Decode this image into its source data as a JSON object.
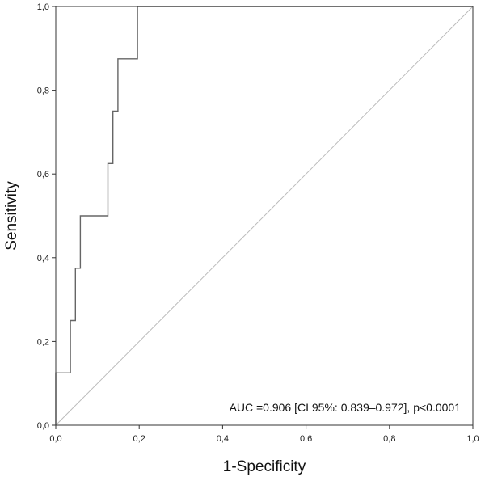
{
  "chart_data": {
    "type": "line",
    "xlabel": "1-Specificity",
    "ylabel": "Sensitivity",
    "xlim": [
      0,
      1
    ],
    "ylim": [
      0,
      1
    ],
    "x_ticks": [
      0,
      0.2,
      0.4,
      0.6,
      0.8,
      1.0
    ],
    "x_tick_labels": [
      "0,0",
      "0,2",
      "0,4",
      "0,6",
      "0,8",
      "1,0"
    ],
    "y_ticks": [
      0,
      0.2,
      0.4,
      0.6,
      0.8,
      1.0
    ],
    "y_tick_labels": [
      "0,0",
      "0,2",
      "0,4",
      "0,6",
      "0,8",
      "1,0"
    ],
    "grid": false,
    "annotation": "AUC =0.906  [CI 95%: 0.839–0.972], p<0.0001",
    "series": [
      {
        "style": "step",
        "color": "#666666",
        "x": [
          0,
          0,
          0.035,
          0.035,
          0.047,
          0.047,
          0.059,
          0.059,
          0.125,
          0.125,
          0.137,
          0.137,
          0.149,
          0.149,
          0.196,
          0.196,
          1.0
        ],
        "y": [
          0,
          0.125,
          0.125,
          0.25,
          0.25,
          0.375,
          0.375,
          0.5,
          0.5,
          0.625,
          0.625,
          0.75,
          0.75,
          0.875,
          0.875,
          1.0,
          1.0
        ]
      },
      {
        "style": "reference",
        "color": "#bbbbbb",
        "x": [
          0,
          1
        ],
        "y": [
          0,
          1
        ]
      }
    ]
  }
}
